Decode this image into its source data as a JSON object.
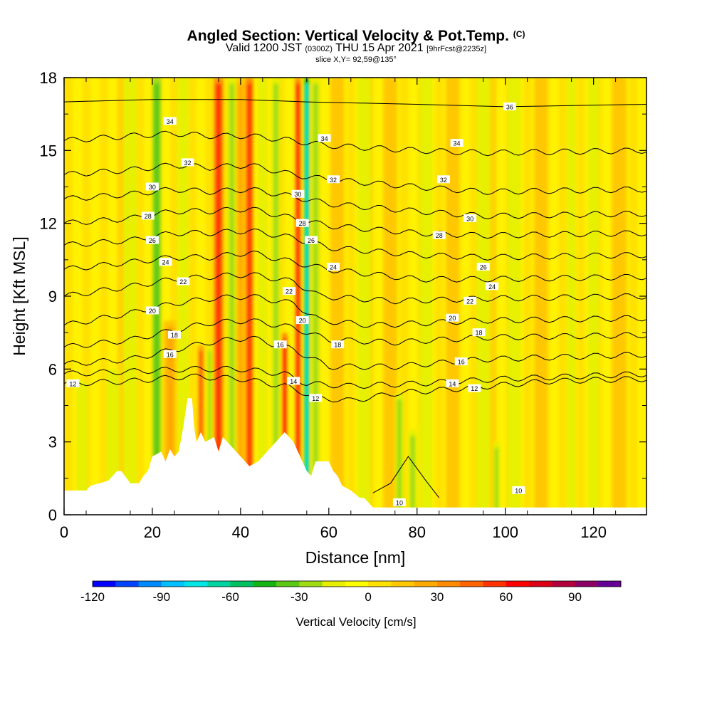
{
  "header": {
    "title": "Angled Section: Vertical Velocity & Pot.Temp.",
    "title_unit": "(C)",
    "valid_prefix": "Valid 1200 JST",
    "valid_utc": "(0300Z)",
    "valid_date": "THU 15 Apr 2021",
    "forecast": "[9hrFcst@2235z]",
    "slice": "slice X,Y= 92,59@135°"
  },
  "chart_data": {
    "type": "heatmap",
    "xlabel": "Distance [nm]",
    "ylabel": "Height [Kft MSL]",
    "xlim": [
      0,
      132
    ],
    "ylim": [
      0,
      18
    ],
    "x_ticks": [
      0,
      20,
      40,
      60,
      80,
      100,
      120
    ],
    "y_ticks": [
      0,
      3,
      6,
      9,
      12,
      15,
      18
    ],
    "colorbar": {
      "label": "Vertical Velocity [cm/s]",
      "range": [
        -120,
        110
      ],
      "ticks": [
        -120,
        -90,
        -60,
        -30,
        0,
        30,
        60,
        90
      ],
      "colors": [
        "#0000ff",
        "#0044ff",
        "#0088ff",
        "#00c0ff",
        "#00e6e6",
        "#00d4a0",
        "#00c060",
        "#14b414",
        "#5ac814",
        "#a0dc14",
        "#e6f000",
        "#ffff00",
        "#ffe100",
        "#ffc800",
        "#ffaa00",
        "#ff8c00",
        "#ff6400",
        "#ff3200",
        "#ff0000",
        "#dc0014",
        "#b4003c",
        "#8c0064",
        "#640096"
      ]
    },
    "velocity_features": [
      {
        "x": 4,
        "top": 5.5,
        "w": -8,
        "width": 2.5
      },
      {
        "x": 11,
        "top": 6,
        "w": -12,
        "width": 3
      },
      {
        "x": 15,
        "top": 18,
        "w": -16,
        "width": 3
      },
      {
        "x": 21,
        "top": 18,
        "w": -45,
        "width": 2
      },
      {
        "x": 24,
        "top": 8,
        "w": 30,
        "width": 3
      },
      {
        "x": 27,
        "top": 18,
        "w": -22,
        "width": 2.5
      },
      {
        "x": 31,
        "top": 7,
        "w": 50,
        "width": 1.5
      },
      {
        "x": 33,
        "top": 7,
        "w": -35,
        "width": 1.2
      },
      {
        "x": 35,
        "top": 18,
        "w": 70,
        "width": 2.2
      },
      {
        "x": 38,
        "top": 18,
        "w": -35,
        "width": 2
      },
      {
        "x": 40,
        "top": 18,
        "w": 30,
        "width": 2
      },
      {
        "x": 42,
        "top": 18,
        "w": 72,
        "width": 1.8
      },
      {
        "x": 45,
        "top": 18,
        "w": -25,
        "width": 2
      },
      {
        "x": 48,
        "top": 18,
        "w": -28,
        "width": 2
      },
      {
        "x": 50,
        "top": 7.5,
        "w": 85,
        "width": 1.3
      },
      {
        "x": 53,
        "top": 18,
        "w": 80,
        "width": 1.3
      },
      {
        "x": 55,
        "top": 18,
        "w": -95,
        "width": 1.2
      },
      {
        "x": 57,
        "top": 18,
        "w": -30,
        "width": 2
      },
      {
        "x": 62,
        "top": 18,
        "w": 25,
        "width": 3
      },
      {
        "x": 68,
        "top": 18,
        "w": -15,
        "width": 3
      },
      {
        "x": 74,
        "top": 18,
        "w": 15,
        "width": 3
      },
      {
        "x": 76,
        "top": 5,
        "w": -30,
        "width": 2
      },
      {
        "x": 79,
        "top": 3.5,
        "w": -30,
        "width": 2
      },
      {
        "x": 82,
        "top": 18,
        "w": -18,
        "width": 3
      },
      {
        "x": 88,
        "top": 18,
        "w": 15,
        "width": 3
      },
      {
        "x": 95,
        "top": 18,
        "w": -20,
        "width": 3
      },
      {
        "x": 98,
        "top": 3,
        "w": -35,
        "width": 1.5
      },
      {
        "x": 102,
        "top": 18,
        "w": -15,
        "width": 3
      },
      {
        "x": 108,
        "top": 18,
        "w": 12,
        "width": 3
      },
      {
        "x": 115,
        "top": 18,
        "w": -20,
        "width": 2
      },
      {
        "x": 120,
        "top": 18,
        "w": -18,
        "width": 2.5
      },
      {
        "x": 126,
        "top": 18,
        "w": 18,
        "width": 3
      }
    ],
    "terrain": [
      [
        0,
        1
      ],
      [
        5,
        1
      ],
      [
        6,
        1.2
      ],
      [
        10,
        1.4
      ],
      [
        12,
        1.8
      ],
      [
        13,
        1.8
      ],
      [
        15,
        1.3
      ],
      [
        17,
        1.3
      ],
      [
        18,
        1.6
      ],
      [
        19,
        1.8
      ],
      [
        20,
        2.4
      ],
      [
        21,
        2.5
      ],
      [
        22,
        2.6
      ],
      [
        23,
        2.2
      ],
      [
        24,
        2.7
      ],
      [
        25,
        2.4
      ],
      [
        26,
        2.6
      ],
      [
        27,
        3.6
      ],
      [
        28,
        4.8
      ],
      [
        29,
        4.8
      ],
      [
        29.5,
        3.6
      ],
      [
        30,
        3.0
      ],
      [
        31,
        3.4
      ],
      [
        32,
        3.0
      ],
      [
        34,
        3.2
      ],
      [
        35,
        2.6
      ],
      [
        36,
        3.2
      ],
      [
        37,
        3.0
      ],
      [
        38,
        2.8
      ],
      [
        39,
        2.6
      ],
      [
        40,
        2.4
      ],
      [
        41,
        2.2
      ],
      [
        42,
        2.0
      ],
      [
        44,
        2.2
      ],
      [
        45,
        2.4
      ],
      [
        46,
        2.6
      ],
      [
        47,
        2.8
      ],
      [
        48,
        3.0
      ],
      [
        49,
        3.2
      ],
      [
        50,
        3.4
      ],
      [
        51,
        3.2
      ],
      [
        52,
        3.0
      ],
      [
        53,
        2.6
      ],
      [
        54,
        2.2
      ],
      [
        55,
        1.8
      ],
      [
        56,
        1.6
      ],
      [
        57,
        2.2
      ],
      [
        60,
        2.2
      ],
      [
        61,
        1.8
      ],
      [
        62,
        1.6
      ],
      [
        63,
        1.2
      ],
      [
        65,
        1.0
      ],
      [
        67,
        0.7
      ],
      [
        68,
        0.7
      ],
      [
        69,
        0.5
      ],
      [
        70,
        0.3
      ],
      [
        132,
        0.3
      ]
    ],
    "theta_levels": [
      {
        "value": 10,
        "h": [
          [
            70,
            0.9
          ],
          [
            74,
            1.3
          ],
          [
            78,
            2.4
          ],
          [
            82,
            1.4
          ],
          [
            85,
            0.7
          ]
        ]
      },
      {
        "value": 12,
        "h": [
          [
            0,
            5.4
          ],
          [
            15,
            5.5
          ],
          [
            28,
            5.7
          ],
          [
            40,
            5.6
          ],
          [
            50,
            5.3
          ],
          [
            58,
            4.8
          ],
          [
            65,
            4.7
          ],
          [
            75,
            5.0
          ],
          [
            90,
            5.2
          ],
          [
            110,
            5.5
          ],
          [
            132,
            5.6
          ]
        ]
      },
      {
        "value": 14,
        "h": [
          [
            0,
            5.8
          ],
          [
            15,
            5.9
          ],
          [
            28,
            6.0
          ],
          [
            40,
            6.0
          ],
          [
            50,
            5.8
          ],
          [
            55,
            5.4
          ],
          [
            65,
            5.3
          ],
          [
            80,
            5.4
          ],
          [
            100,
            5.6
          ],
          [
            132,
            5.8
          ]
        ]
      },
      {
        "value": 16,
        "h": [
          [
            0,
            6.2
          ],
          [
            15,
            6.4
          ],
          [
            25,
            6.8
          ],
          [
            33,
            7.1
          ],
          [
            42,
            7.3
          ],
          [
            52,
            6.8
          ],
          [
            60,
            6.1
          ],
          [
            75,
            6.1
          ],
          [
            95,
            6.4
          ],
          [
            132,
            6.6
          ]
        ]
      },
      {
        "value": 18,
        "h": [
          [
            0,
            6.9
          ],
          [
            15,
            7.2
          ],
          [
            25,
            7.6
          ],
          [
            33,
            7.9
          ],
          [
            42,
            8.0
          ],
          [
            52,
            7.7
          ],
          [
            60,
            7.2
          ],
          [
            75,
            7.1
          ],
          [
            95,
            7.3
          ],
          [
            132,
            7.4
          ]
        ]
      },
      {
        "value": 20,
        "h": [
          [
            0,
            7.8
          ],
          [
            15,
            8.3
          ],
          [
            25,
            8.7
          ],
          [
            33,
            8.9
          ],
          [
            42,
            9.0
          ],
          [
            52,
            8.7
          ],
          [
            58,
            8.0
          ],
          [
            70,
            7.8
          ],
          [
            95,
            8.0
          ],
          [
            132,
            8.1
          ]
        ]
      },
      {
        "value": 22,
        "h": [
          [
            0,
            9.0
          ],
          [
            15,
            9.4
          ],
          [
            25,
            9.7
          ],
          [
            33,
            9.8
          ],
          [
            42,
            9.9
          ],
          [
            52,
            9.6
          ],
          [
            58,
            9.0
          ],
          [
            75,
            8.8
          ],
          [
            95,
            8.9
          ],
          [
            132,
            9.0
          ]
        ]
      },
      {
        "value": 24,
        "h": [
          [
            0,
            10.1
          ],
          [
            15,
            10.4
          ],
          [
            25,
            10.6
          ],
          [
            33,
            10.6
          ],
          [
            42,
            10.8
          ],
          [
            52,
            10.4
          ],
          [
            60,
            10.1
          ],
          [
            80,
            9.7
          ],
          [
            95,
            9.7
          ],
          [
            132,
            9.8
          ]
        ]
      },
      {
        "value": 26,
        "h": [
          [
            0,
            11.1
          ],
          [
            15,
            11.3
          ],
          [
            25,
            11.6
          ],
          [
            33,
            11.6
          ],
          [
            42,
            11.7
          ],
          [
            52,
            11.4
          ],
          [
            60,
            11.0
          ],
          [
            80,
            10.7
          ],
          [
            95,
            10.6
          ],
          [
            132,
            10.7
          ]
        ]
      },
      {
        "value": 28,
        "h": [
          [
            0,
            12.0
          ],
          [
            15,
            12.2
          ],
          [
            25,
            12.5
          ],
          [
            33,
            12.5
          ],
          [
            42,
            12.6
          ],
          [
            52,
            12.2
          ],
          [
            60,
            11.9
          ],
          [
            80,
            11.6
          ],
          [
            95,
            11.5
          ],
          [
            132,
            11.6
          ]
        ]
      },
      {
        "value": 30,
        "h": [
          [
            0,
            13.0
          ],
          [
            15,
            13.2
          ],
          [
            25,
            13.4
          ],
          [
            33,
            13.3
          ],
          [
            42,
            13.4
          ],
          [
            52,
            13.1
          ],
          [
            60,
            12.8
          ],
          [
            80,
            12.5
          ],
          [
            95,
            12.3
          ],
          [
            132,
            12.4
          ]
        ]
      },
      {
        "value": 32,
        "h": [
          [
            0,
            14.0
          ],
          [
            15,
            14.2
          ],
          [
            25,
            14.4
          ],
          [
            33,
            14.3
          ],
          [
            42,
            14.4
          ],
          [
            52,
            14.0
          ],
          [
            60,
            13.8
          ],
          [
            80,
            13.5
          ],
          [
            95,
            13.3
          ],
          [
            132,
            13.4
          ]
        ]
      },
      {
        "value": 34,
        "h": [
          [
            0,
            15.4
          ],
          [
            15,
            15.6
          ],
          [
            25,
            15.7
          ],
          [
            33,
            15.6
          ],
          [
            42,
            15.6
          ],
          [
            52,
            15.4
          ],
          [
            60,
            15.2
          ],
          [
            80,
            15.0
          ],
          [
            95,
            14.9
          ],
          [
            132,
            15.0
          ]
        ]
      },
      {
        "value": 36,
        "h": [
          [
            0,
            17.0
          ],
          [
            20,
            17.1
          ],
          [
            40,
            17.1
          ],
          [
            55,
            17.0
          ],
          [
            80,
            16.9
          ],
          [
            100,
            16.8
          ],
          [
            132,
            16.9
          ]
        ]
      }
    ],
    "contour_labels": [
      {
        "x": 2,
        "h": 5.4,
        "text": "12"
      },
      {
        "x": 57,
        "h": 4.8,
        "text": "12"
      },
      {
        "x": 93,
        "h": 5.2,
        "text": "12"
      },
      {
        "x": 52,
        "h": 5.5,
        "text": "14"
      },
      {
        "x": 88,
        "h": 5.4,
        "text": "14"
      },
      {
        "x": 24,
        "h": 6.6,
        "text": "16"
      },
      {
        "x": 49,
        "h": 7.0,
        "text": "16"
      },
      {
        "x": 90,
        "h": 6.3,
        "text": "16"
      },
      {
        "x": 25,
        "h": 7.4,
        "text": "18"
      },
      {
        "x": 62,
        "h": 7.0,
        "text": "18"
      },
      {
        "x": 94,
        "h": 7.5,
        "text": "18"
      },
      {
        "x": 20,
        "h": 8.4,
        "text": "20"
      },
      {
        "x": 54,
        "h": 8.0,
        "text": "20"
      },
      {
        "x": 88,
        "h": 8.1,
        "text": "20"
      },
      {
        "x": 27,
        "h": 9.6,
        "text": "22"
      },
      {
        "x": 51,
        "h": 9.2,
        "text": "22"
      },
      {
        "x": 92,
        "h": 8.8,
        "text": "22"
      },
      {
        "x": 23,
        "h": 10.4,
        "text": "24"
      },
      {
        "x": 61,
        "h": 10.2,
        "text": "24"
      },
      {
        "x": 97,
        "h": 9.4,
        "text": "24"
      },
      {
        "x": 20,
        "h": 11.3,
        "text": "26"
      },
      {
        "x": 56,
        "h": 11.3,
        "text": "26"
      },
      {
        "x": 95,
        "h": 10.2,
        "text": "26"
      },
      {
        "x": 19,
        "h": 12.3,
        "text": "28"
      },
      {
        "x": 54,
        "h": 12.0,
        "text": "28"
      },
      {
        "x": 85,
        "h": 11.5,
        "text": "28"
      },
      {
        "x": 20,
        "h": 13.5,
        "text": "30"
      },
      {
        "x": 53,
        "h": 13.2,
        "text": "30"
      },
      {
        "x": 92,
        "h": 12.2,
        "text": "30"
      },
      {
        "x": 28,
        "h": 14.5,
        "text": "32"
      },
      {
        "x": 61,
        "h": 13.8,
        "text": "32"
      },
      {
        "x": 86,
        "h": 13.8,
        "text": "32"
      },
      {
        "x": 24,
        "h": 16.2,
        "text": "34"
      },
      {
        "x": 59,
        "h": 15.5,
        "text": "34"
      },
      {
        "x": 89,
        "h": 15.3,
        "text": "34"
      },
      {
        "x": 101,
        "h": 16.8,
        "text": "36"
      },
      {
        "x": 76,
        "h": 0.5,
        "text": "10"
      },
      {
        "x": 103,
        "h": 1.0,
        "text": "10"
      }
    ]
  }
}
